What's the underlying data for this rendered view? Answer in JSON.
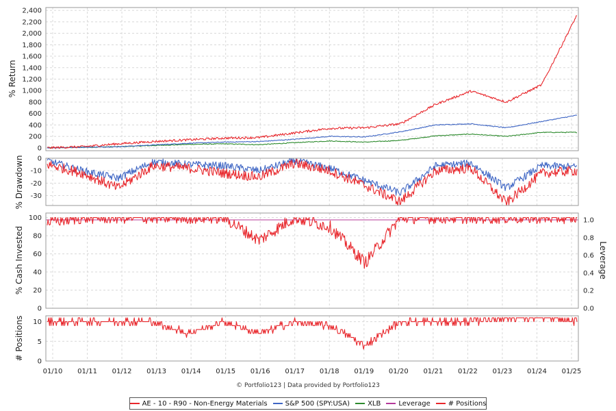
{
  "credit": "© Portfolio123 | Data provided by Portfolio123",
  "legend": [
    {
      "label": "AE - 10 - R90 - Non-Energy Materials",
      "color": "#e8262b"
    },
    {
      "label": "S&P 500 (SPY:USA)",
      "color": "#3f66c4"
    },
    {
      "label": "XLB",
      "color": "#2e8b2e"
    },
    {
      "label": "Leverage",
      "color": "#b4389a"
    },
    {
      "label": "# Positions",
      "color": "#e8262b"
    }
  ],
  "chart_data": [
    {
      "type": "line",
      "ylabel": "% Return",
      "ylim": [
        -50,
        2450
      ],
      "yticks": [
        "0",
        "200",
        "400",
        "600",
        "800",
        "1,000",
        "1,200",
        "1,400",
        "1,600",
        "1,800",
        "2,000",
        "2,200",
        "2,400"
      ],
      "x": [
        "01/10",
        "01/11",
        "01/12",
        "01/13",
        "01/14",
        "01/15",
        "01/16",
        "01/17",
        "01/18",
        "01/19",
        "01/20",
        "01/21",
        "01/22",
        "01/23",
        "01/24",
        "01/25"
      ],
      "series": [
        {
          "name": "AE - 10 - R90 - Non-Energy Materials",
          "color": "#e8262b",
          "values": [
            0,
            20,
            70,
            110,
            140,
            170,
            180,
            260,
            340,
            350,
            420,
            760,
            990,
            800,
            1100,
            2320
          ]
        },
        {
          "name": "S&P 500 (SPY:USA)",
          "color": "#3f66c4",
          "values": [
            0,
            10,
            20,
            50,
            80,
            100,
            110,
            150,
            200,
            190,
            280,
            400,
            420,
            350,
            460,
            570
          ]
        },
        {
          "name": "XLB",
          "color": "#2e8b2e",
          "values": [
            0,
            10,
            20,
            40,
            60,
            70,
            55,
            90,
            120,
            100,
            130,
            210,
            240,
            200,
            270,
            270
          ]
        }
      ],
      "grid": true
    },
    {
      "type": "line",
      "ylabel": "% Drawdown",
      "ylim": [
        -38,
        0
      ],
      "yticks": [
        "0",
        "-10",
        "-20",
        "-30"
      ],
      "x": [
        "01/10",
        "01/11",
        "01/12",
        "01/13",
        "01/14",
        "01/15",
        "01/16",
        "01/17",
        "01/18",
        "01/19",
        "01/20",
        "01/21",
        "01/22",
        "01/23",
        "01/24",
        "01/25"
      ],
      "series": [
        {
          "name": "AE - 10 - R90 - Non-Energy Materials",
          "color": "#e8262b",
          "values": [
            -5,
            -12,
            -24,
            -6,
            -8,
            -12,
            -15,
            -4,
            -10,
            -22,
            -35,
            -10,
            -8,
            -36,
            -12,
            -10
          ]
        },
        {
          "name": "S&P 500 (SPY:USA)",
          "color": "#3f66c4",
          "values": [
            -2,
            -10,
            -16,
            -3,
            -5,
            -6,
            -10,
            -2,
            -8,
            -18,
            -28,
            -6,
            -4,
            -24,
            -6,
            -7
          ]
        }
      ],
      "grid": true
    },
    {
      "type": "line",
      "ylabel": "% Cash Invested",
      "y2label": "Leverage",
      "ylim": [
        0,
        105
      ],
      "yticks": [
        "0",
        "20",
        "40",
        "60",
        "80",
        "100"
      ],
      "y2ticks": [
        "0.0",
        "0.2",
        "0.4",
        "0.6",
        "0.8",
        "1.0"
      ],
      "x": [
        "01/10",
        "01/11",
        "01/12",
        "01/13",
        "01/14",
        "01/15",
        "01/16",
        "01/17",
        "01/18",
        "01/19",
        "01/20",
        "01/21",
        "01/22",
        "01/23",
        "01/24",
        "01/25"
      ],
      "series": [
        {
          "name": "% Cash Invested",
          "color": "#e8262b",
          "values": [
            95,
            100,
            100,
            100,
            100,
            100,
            75,
            100,
            90,
            50,
            100,
            100,
            100,
            100,
            100,
            100
          ]
        },
        {
          "name": "Leverage",
          "color": "#b4389a",
          "values": [
            1,
            1,
            1,
            1,
            1,
            1,
            1,
            1,
            1,
            1,
            1,
            1,
            1,
            1,
            1,
            1
          ]
        }
      ],
      "grid": true
    },
    {
      "type": "line",
      "ylabel": "# Positions",
      "ylim": [
        0,
        11.5
      ],
      "yticks": [
        "0",
        "5",
        "10"
      ],
      "x": [
        "01/10",
        "01/11",
        "01/12",
        "01/13",
        "01/14",
        "01/15",
        "01/16",
        "01/17",
        "01/18",
        "01/19",
        "01/20",
        "01/21",
        "01/22",
        "01/23",
        "01/24",
        "01/25"
      ],
      "series": [
        {
          "name": "# Positions",
          "color": "#e8262b",
          "values": [
            10,
            10,
            10,
            10,
            7,
            10,
            7,
            10,
            9,
            4,
            10,
            10,
            10,
            11,
            11,
            10
          ]
        }
      ],
      "grid": true
    }
  ]
}
